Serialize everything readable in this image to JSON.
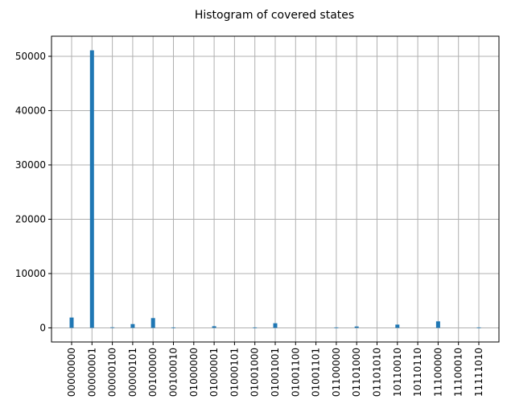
{
  "chart_data": {
    "type": "bar",
    "title": "Histogram of covered states",
    "xlabel": "",
    "ylabel": "",
    "grid": true,
    "legend": "none",
    "bar_color": "#1f77b4",
    "grid_color": "#b0b0b0",
    "ylim": [
      -2600,
      53700
    ],
    "yticks": [
      0,
      10000,
      20000,
      30000,
      40000,
      50000
    ],
    "xticks": [
      "00000000",
      "00000001",
      "00000100",
      "00000101",
      "00100000",
      "00100010",
      "01000000",
      "01000001",
      "01000101",
      "01001000",
      "01001001",
      "01001100",
      "01001101",
      "01100000",
      "01101000",
      "01101010",
      "10110010",
      "10110110",
      "11100000",
      "11100010",
      "11111010"
    ],
    "bars": [
      {
        "x": "00000000",
        "value": 1900
      },
      {
        "x": "00000001",
        "value": 51100
      },
      {
        "x": "00000100",
        "value": 100
      },
      {
        "x": "00000101",
        "value": 700
      },
      {
        "x": "00100000",
        "value": 1800
      },
      {
        "x": "00100010",
        "value": 80
      },
      {
        "x": "01000001",
        "value": 300
      },
      {
        "x": "01001000",
        "value": 80
      },
      {
        "x": "01001001",
        "value": 850
      },
      {
        "x": "01100000",
        "value": 80
      },
      {
        "x": "01101000",
        "value": 250
      },
      {
        "x": "10110010",
        "value": 600
      },
      {
        "x": "11100000",
        "value": 1200
      },
      {
        "x": "11111010",
        "value": 80
      }
    ]
  }
}
